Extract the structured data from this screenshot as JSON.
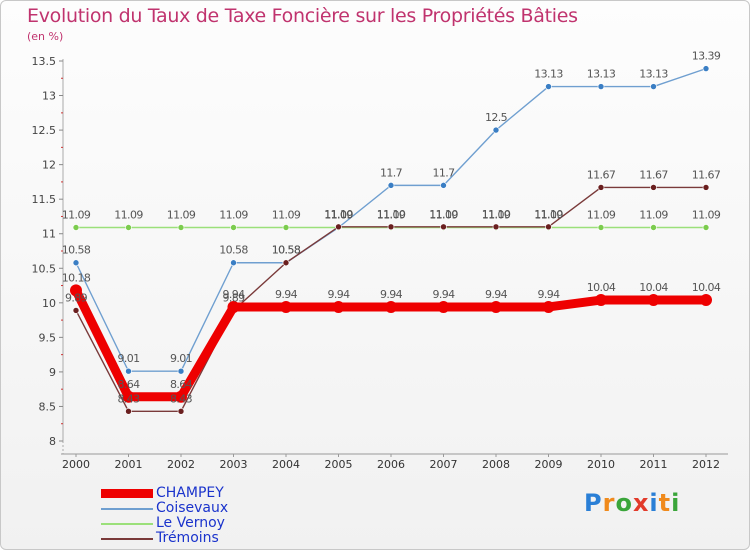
{
  "title": "Evolution du Taux de Taxe Foncière sur les Propriétés Bâties",
  "unit_label": "(en %)",
  "logo": {
    "letters": [
      "P",
      "r",
      "o",
      "x",
      "i",
      "t",
      "i"
    ],
    "colors": [
      "#2a7fd6",
      "#f08a1c",
      "#3aa53a",
      "#e23a2a",
      "#2a7fd6",
      "#f08a1c",
      "#3aa53a"
    ]
  },
  "chart_data": {
    "type": "line",
    "title": "Evolution du Taux de Taxe Foncière sur les Propriétés Bâties",
    "ylabel": "(en %)",
    "xlabel": "",
    "categories": [
      "2000",
      "2001",
      "2002",
      "2003",
      "2004",
      "2005",
      "2006",
      "2007",
      "2008",
      "2009",
      "2010",
      "2011",
      "2012"
    ],
    "ylim": [
      8,
      13.5
    ],
    "yticks": [
      "8",
      "8.5",
      "9",
      "9.5",
      "10",
      "10.5",
      "11",
      "11.5",
      "12",
      "12.5",
      "13",
      "13.5"
    ],
    "series": [
      {
        "name": "Coisevaux",
        "color": "#6f9fd0",
        "dot": "#3a7ec4",
        "values": [
          10.58,
          9.01,
          9.01,
          10.58,
          10.58,
          11.09,
          11.7,
          11.7,
          12.5,
          13.13,
          13.13,
          13.13,
          13.39
        ],
        "labels": [
          "10.58",
          "9.01",
          "9.01",
          "10.58",
          "10.58",
          "11.09",
          "11.7",
          "11.7",
          "12.5",
          "13.13",
          "13.13",
          "13.13",
          "13.39"
        ]
      },
      {
        "name": "Le Vernoy",
        "color": "#9be07a",
        "dot": "#7ccc4e",
        "values": [
          11.09,
          11.09,
          11.09,
          11.09,
          11.09,
          11.09,
          11.09,
          11.09,
          11.09,
          11.09,
          11.09,
          11.09,
          11.09
        ],
        "labels": [
          "11.09",
          "11.09",
          "11.09",
          "11.09",
          "11.09",
          "11.09",
          "11.09",
          "11.09",
          "11.09",
          "11.09",
          "11.09",
          "11.09",
          "11.09"
        ]
      },
      {
        "name": "Trémoins",
        "color": "#7a3a3a",
        "dot": "#6a1f1f",
        "values": [
          9.89,
          8.43,
          8.43,
          9.89,
          10.58,
          11.1,
          11.1,
          11.1,
          11.1,
          11.1,
          11.67,
          11.67,
          11.67
        ],
        "labels": [
          "9.89",
          "8.43",
          "8.43",
          "9.89",
          "10.58",
          "11.10",
          "11.10",
          "11.10",
          "11.10",
          "11.10",
          "11.67",
          "11.67",
          "11.67"
        ]
      },
      {
        "name": "CHAMPEY",
        "color": "#ee0000",
        "dot": "#ee0000",
        "values": [
          10.18,
          8.64,
          8.64,
          9.94,
          9.94,
          9.94,
          9.94,
          9.94,
          9.94,
          9.94,
          10.04,
          10.04,
          10.04
        ],
        "labels": [
          "10.18",
          "8.64",
          "8.64",
          "9.94",
          "9.94",
          "9.94",
          "9.94",
          "9.94",
          "9.94",
          "9.94",
          "10.04",
          "10.04",
          "10.04"
        ]
      }
    ],
    "legend": [
      "CHAMPEY",
      "Coisevaux",
      "Le Vernoy",
      "Trémoins"
    ],
    "legend_position": "bottom-left"
  }
}
